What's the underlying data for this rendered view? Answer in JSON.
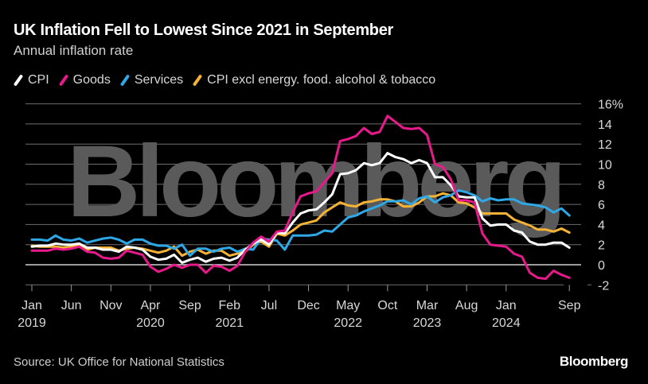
{
  "header": {
    "title": "UK Inflation Fell to Lowest Since 2021 in September",
    "subtitle": "Annual inflation rate"
  },
  "footer": {
    "source": "Source: UK Office for National Statistics",
    "logo": "Bloomberg"
  },
  "watermark": "Bloomberg",
  "chart_data": {
    "type": "line",
    "title": "UK Inflation Fell to Lowest Since 2021 in September",
    "subtitle": "Annual inflation rate",
    "xlabel": "",
    "ylabel": "",
    "y_unit": "%",
    "ylim": [
      -2,
      16
    ],
    "yticks": [
      16,
      14,
      12,
      10,
      8,
      6,
      4,
      2,
      0,
      -2
    ],
    "ytick_labels": [
      "16%",
      "14",
      "12",
      "10",
      "8",
      "6",
      "4",
      "2",
      "0",
      "-2"
    ],
    "grid": true,
    "legend_position": "top-left",
    "x_start": "2019-01",
    "x_end": "2024-09",
    "x_frequency": "monthly",
    "xticks": [
      {
        "month_index": 0,
        "label": "Jan",
        "year": "2019"
      },
      {
        "month_index": 5,
        "label": "Jun",
        "year": ""
      },
      {
        "month_index": 10,
        "label": "Nov",
        "year": ""
      },
      {
        "month_index": 15,
        "label": "Apr",
        "year": "2020"
      },
      {
        "month_index": 20,
        "label": "Sep",
        "year": ""
      },
      {
        "month_index": 25,
        "label": "Feb",
        "year": "2021"
      },
      {
        "month_index": 30,
        "label": "Jul",
        "year": ""
      },
      {
        "month_index": 35,
        "label": "Dec",
        "year": ""
      },
      {
        "month_index": 40,
        "label": "May",
        "year": "2022"
      },
      {
        "month_index": 45,
        "label": "Oct",
        "year": ""
      },
      {
        "month_index": 50,
        "label": "Mar",
        "year": "2023"
      },
      {
        "month_index": 55,
        "label": "Aug",
        "year": ""
      },
      {
        "month_index": 60,
        "label": "Jan",
        "year": "2024"
      },
      {
        "month_index": 68,
        "label": "Sep",
        "year": ""
      }
    ],
    "series": [
      {
        "name": "CPI",
        "color": "#ffffff",
        "values": [
          1.8,
          1.9,
          1.9,
          2.1,
          2.0,
          2.0,
          2.1,
          1.7,
          1.7,
          1.5,
          1.5,
          1.3,
          1.8,
          1.7,
          1.5,
          0.8,
          0.5,
          0.6,
          1.0,
          0.2,
          0.5,
          0.7,
          0.3,
          0.6,
          0.7,
          0.4,
          0.7,
          1.5,
          2.1,
          2.5,
          2.0,
          3.2,
          3.1,
          4.2,
          5.1,
          5.4,
          5.5,
          6.2,
          7.0,
          9.0,
          9.1,
          9.4,
          10.1,
          9.9,
          10.1,
          11.1,
          10.7,
          10.5,
          10.1,
          10.4,
          10.1,
          8.7,
          8.7,
          7.9,
          6.8,
          6.7,
          6.7,
          4.6,
          3.9,
          4.0,
          4.0,
          3.4,
          3.2,
          2.3,
          2.0,
          2.0,
          2.2,
          2.2,
          1.7
        ]
      },
      {
        "name": "Goods",
        "color": "#e8198b",
        "values": [
          1.4,
          1.4,
          1.4,
          1.6,
          1.5,
          1.6,
          1.8,
          1.3,
          1.2,
          0.7,
          0.6,
          0.7,
          1.4,
          1.2,
          1.0,
          -0.2,
          -0.7,
          -0.4,
          0.0,
          -0.3,
          0.0,
          0.0,
          -0.8,
          -0.1,
          -0.2,
          -0.6,
          -0.1,
          1.3,
          2.2,
          2.8,
          2.3,
          3.3,
          3.4,
          5.2,
          6.8,
          7.1,
          7.3,
          8.2,
          9.1,
          12.3,
          12.5,
          12.8,
          13.6,
          13.0,
          13.2,
          14.8,
          14.2,
          13.6,
          13.5,
          13.6,
          12.9,
          10.0,
          9.7,
          8.5,
          6.4,
          6.4,
          6.2,
          3.1,
          2.0,
          1.9,
          1.8,
          1.1,
          0.8,
          -0.8,
          -1.3,
          -1.4,
          -0.6,
          -1.0,
          -1.3
        ]
      },
      {
        "name": "Services",
        "color": "#2fa8e8",
        "values": [
          2.5,
          2.5,
          2.4,
          2.9,
          2.5,
          2.4,
          2.6,
          2.2,
          2.4,
          2.6,
          2.7,
          2.5,
          2.1,
          2.5,
          2.5,
          2.1,
          1.9,
          1.9,
          1.6,
          2.0,
          0.9,
          1.6,
          1.6,
          1.3,
          1.6,
          1.7,
          1.3,
          1.6,
          1.5,
          2.6,
          2.5,
          2.4,
          1.5,
          2.9,
          2.9,
          2.9,
          3.0,
          3.4,
          3.3,
          4.0,
          4.7,
          4.9,
          5.3,
          5.6,
          5.9,
          6.3,
          6.3,
          6.4,
          6.0,
          6.6,
          6.8,
          6.2,
          6.7,
          6.9,
          7.4,
          7.2,
          6.9,
          6.3,
          6.6,
          6.4,
          6.5,
          6.5,
          6.1,
          6.0,
          5.9,
          5.7,
          5.2,
          5.6,
          4.9
        ]
      },
      {
        "name": "CPI excl energy. food. alcohol & tobacco",
        "color": "#f5b335",
        "values": [
          1.9,
          1.8,
          1.8,
          1.8,
          1.7,
          1.8,
          1.9,
          1.5,
          1.7,
          1.7,
          1.7,
          1.4,
          1.6,
          1.7,
          1.6,
          1.4,
          1.2,
          1.4,
          1.8,
          0.9,
          1.3,
          1.5,
          1.1,
          1.4,
          1.4,
          0.9,
          1.1,
          1.3,
          2.0,
          2.3,
          1.8,
          3.1,
          2.9,
          3.4,
          4.0,
          4.2,
          4.4,
          5.2,
          5.7,
          6.2,
          5.9,
          5.8,
          6.2,
          6.3,
          6.5,
          6.5,
          6.3,
          5.8,
          5.8,
          6.2,
          6.8,
          6.8,
          7.1,
          6.9,
          6.2,
          6.1,
          5.7,
          5.1,
          5.1,
          5.1,
          5.1,
          4.5,
          4.2,
          3.9,
          3.5,
          3.5,
          3.3,
          3.6,
          3.2
        ]
      }
    ]
  }
}
